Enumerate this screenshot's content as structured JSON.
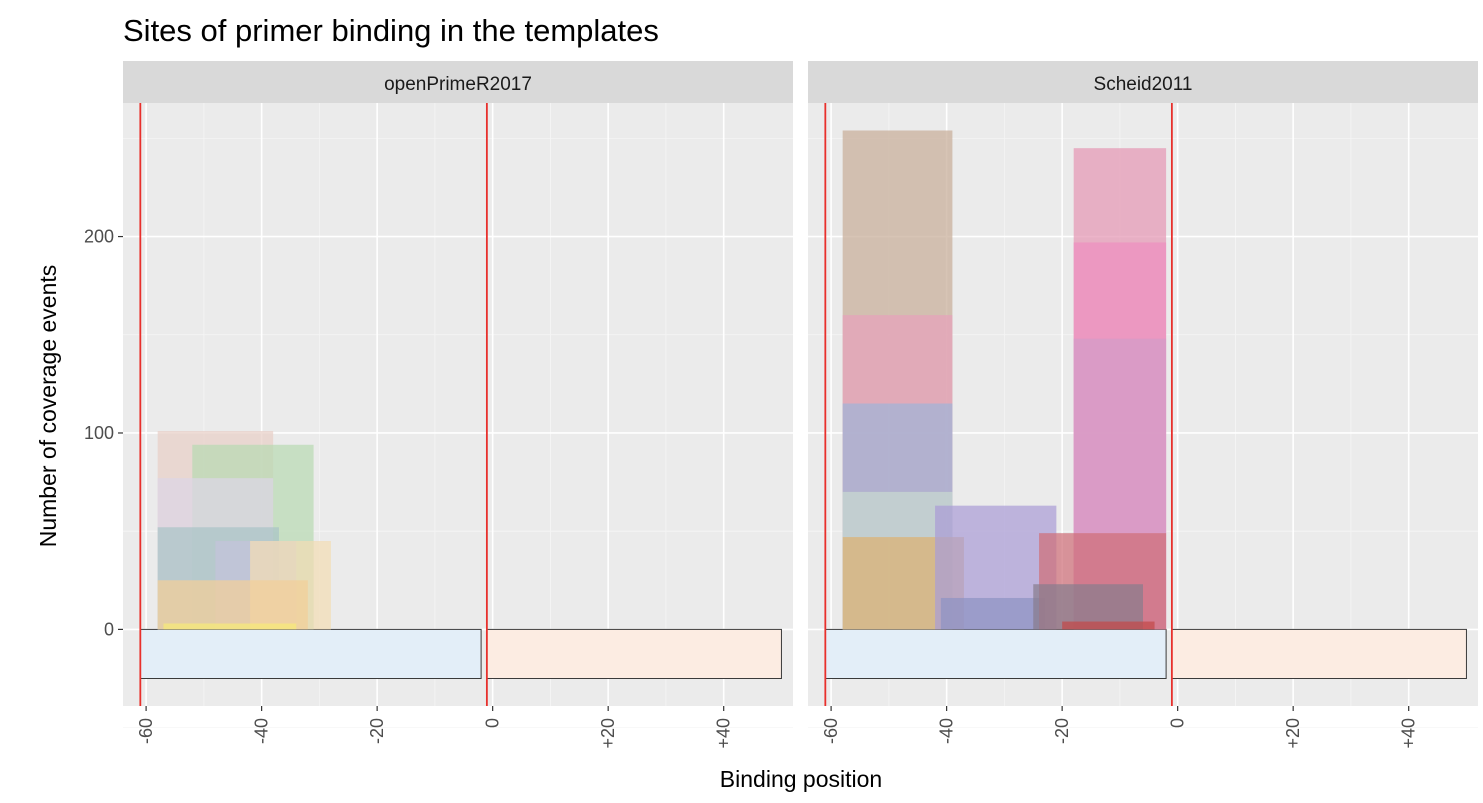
{
  "chart_data": {
    "type": "bar",
    "title": "Sites of primer binding in the templates",
    "xlabel": "Binding position",
    "ylabel": "Number of coverage events",
    "xlim": [
      -64,
      52
    ],
    "ylim": [
      -39,
      268
    ],
    "x_ticks": [
      {
        "value": -60,
        "label": "-60"
      },
      {
        "value": -40,
        "label": "-40"
      },
      {
        "value": -20,
        "label": "-20"
      },
      {
        "value": 0,
        "label": "0"
      },
      {
        "value": 20,
        "label": "+20"
      },
      {
        "value": 40,
        "label": "+40"
      }
    ],
    "y_ticks": [
      {
        "value": 0,
        "label": "0"
      },
      {
        "value": 100,
        "label": "100"
      },
      {
        "value": 200,
        "label": "200"
      }
    ],
    "grid": true,
    "legend": "none",
    "panels": [
      {
        "name": "openPrimeR2017",
        "vlines": [
          -61,
          -1
        ],
        "regions": [
          {
            "x0": -61,
            "x1": -2,
            "y0": -25,
            "y1": 0,
            "color": "#e3eef8"
          },
          {
            "x0": -1,
            "x1": 50,
            "y0": -25,
            "y1": 0,
            "color": "#fcece2"
          }
        ],
        "bars": [
          {
            "x0": -58,
            "x1": -38,
            "y0": 0,
            "y1": 101,
            "color": "#e8cfc6"
          },
          {
            "x0": -52,
            "x1": -31,
            "y0": 0,
            "y1": 94,
            "color": "#b9d9b3"
          },
          {
            "x0": -58,
            "x1": -38,
            "y0": 0,
            "y1": 77,
            "color": "#ddd5e6"
          },
          {
            "x0": -58,
            "x1": -37,
            "y0": 0,
            "y1": 52,
            "color": "#a9c4c6"
          },
          {
            "x0": -48,
            "x1": -34,
            "y0": 0,
            "y1": 45,
            "color": "#c3c3db"
          },
          {
            "x0": -42,
            "x1": -28,
            "y0": 0,
            "y1": 45,
            "color": "#f2ddb4"
          },
          {
            "x0": -58,
            "x1": -32,
            "y0": 0,
            "y1": 25,
            "color": "#f3cf99"
          },
          {
            "x0": -57,
            "x1": -34,
            "y0": 0,
            "y1": 3,
            "color": "#f7ea78"
          }
        ]
      },
      {
        "name": "Scheid2011",
        "vlines": [
          -61,
          -1
        ],
        "regions": [
          {
            "x0": -61,
            "x1": -2,
            "y0": -25,
            "y1": 0,
            "color": "#e3eef8"
          },
          {
            "x0": -1,
            "x1": 50,
            "y0": -25,
            "y1": 0,
            "color": "#fcece2"
          }
        ],
        "bars": [
          {
            "x0": -58,
            "x1": -39,
            "y0": 0,
            "y1": 254,
            "color": "#c7ad99"
          },
          {
            "x0": -58,
            "x1": -39,
            "y0": 0,
            "y1": 160,
            "color": "#e6a2bb"
          },
          {
            "x0": -58,
            "x1": -39,
            "y0": 0,
            "y1": 115,
            "color": "#9fb4d8"
          },
          {
            "x0": -58,
            "x1": -39,
            "y0": 0,
            "y1": 70,
            "color": "#c8d9d0"
          },
          {
            "x0": -58,
            "x1": -37,
            "y0": 0,
            "y1": 47,
            "color": "#dcb171"
          },
          {
            "x0": -42,
            "x1": -21,
            "y0": 0,
            "y1": 63,
            "color": "#ab9dd6"
          },
          {
            "x0": -41,
            "x1": -23,
            "y0": 0,
            "y1": 16,
            "color": "#8e93c3"
          },
          {
            "x0": -18,
            "x1": -2,
            "y0": 0,
            "y1": 245,
            "color": "#e597b4"
          },
          {
            "x0": -18,
            "x1": -2,
            "y0": 0,
            "y1": 197,
            "color": "#ef8fbf"
          },
          {
            "x0": -18,
            "x1": -2,
            "y0": 0,
            "y1": 148,
            "color": "#d29dc8"
          },
          {
            "x0": -24,
            "x1": -2,
            "y0": 0,
            "y1": 49,
            "color": "#cf6f78"
          },
          {
            "x0": -25,
            "x1": -6,
            "y0": 0,
            "y1": 23,
            "color": "#887d8e"
          },
          {
            "x0": -20,
            "x1": -4,
            "y0": 0,
            "y1": 4,
            "color": "#c24a4a"
          }
        ]
      }
    ]
  }
}
